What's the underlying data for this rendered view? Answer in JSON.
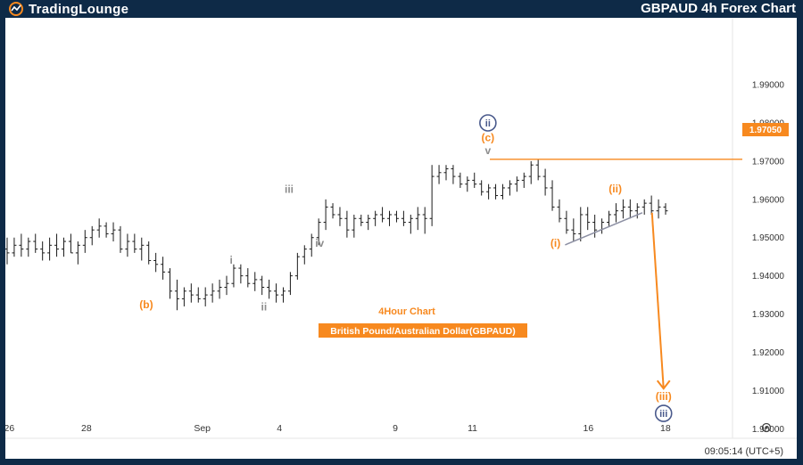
{
  "header": {
    "logo_text": "TradingLounge",
    "chart_heading": "GBPAUD 4h Forex Chart"
  },
  "colors": {
    "frame": "#0e2a47",
    "candle": "#1a1a1a",
    "accent_orange": "#f7891f",
    "wave_gray": "#8d8d8d",
    "circle_navy": "#4a5a8c",
    "trendline": "#8c8fa3"
  },
  "icons": {
    "settings": "gear-icon",
    "logo": "wave-logo-icon"
  },
  "chart_data": {
    "type": "ohlc",
    "symbol": "GBPAUD",
    "timeframe": "4h",
    "annotations": {
      "chart_label": "4Hour Chart",
      "instrument_label": "British Pound/Australian Dollar(GBPAUD)"
    },
    "ylim": [
      1.8975,
      2.0075
    ],
    "y_ticks": [
      "1.99000",
      "1.98000",
      "1.97000",
      "1.96000",
      "1.95000",
      "1.94000",
      "1.93000",
      "1.92000",
      "1.91000",
      "1.90000"
    ],
    "x_range": [
      25.9,
      46.4
    ],
    "x_ticks": [
      {
        "x": 26,
        "label": "26"
      },
      {
        "x": 28,
        "label": "28"
      },
      {
        "x": 31,
        "label": "Sep"
      },
      {
        "x": 33,
        "label": "4"
      },
      {
        "x": 36,
        "label": "9"
      },
      {
        "x": 38,
        "label": "11"
      },
      {
        "x": 41,
        "label": "16"
      },
      {
        "x": 43,
        "label": "18"
      }
    ],
    "price_tag": {
      "value": "1.97050"
    },
    "clock": "09:05:14 (UTC+5)",
    "ohlc": [
      [
        1.947,
        1.95,
        1.943,
        1.946
      ],
      [
        1.946,
        1.95,
        1.945,
        1.948
      ],
      [
        1.948,
        1.951,
        1.945,
        1.947
      ],
      [
        1.947,
        1.95,
        1.945,
        1.949
      ],
      [
        1.949,
        1.951,
        1.946,
        1.947
      ],
      [
        1.947,
        1.949,
        1.944,
        1.946
      ],
      [
        1.946,
        1.95,
        1.944,
        1.948
      ],
      [
        1.948,
        1.951,
        1.945,
        1.947
      ],
      [
        1.947,
        1.95,
        1.945,
        1.949
      ],
      [
        1.949,
        1.951,
        1.946,
        1.946
      ],
      [
        1.946,
        1.949,
        1.943,
        1.948
      ],
      [
        1.948,
        1.952,
        1.946,
        1.95
      ],
      [
        1.95,
        1.953,
        1.948,
        1.952
      ],
      [
        1.952,
        1.955,
        1.95,
        1.953
      ],
      [
        1.953,
        1.954,
        1.95,
        1.951
      ],
      [
        1.951,
        1.954,
        1.949,
        1.952
      ],
      [
        1.952,
        1.953,
        1.946,
        1.947
      ],
      [
        1.947,
        1.951,
        1.945,
        1.949
      ],
      [
        1.949,
        1.951,
        1.946,
        1.947
      ],
      [
        1.947,
        1.95,
        1.944,
        1.948
      ],
      [
        1.948,
        1.949,
        1.943,
        1.944
      ],
      [
        1.944,
        1.946,
        1.941,
        1.943
      ],
      [
        1.943,
        1.945,
        1.939,
        1.941
      ],
      [
        1.941,
        1.942,
        1.934,
        1.936
      ],
      [
        1.936,
        1.939,
        1.931,
        1.934
      ],
      [
        1.934,
        1.937,
        1.932,
        1.936
      ],
      [
        1.936,
        1.938,
        1.933,
        1.935
      ],
      [
        1.935,
        1.937,
        1.933,
        1.934
      ],
      [
        1.934,
        1.937,
        1.932,
        1.935
      ],
      [
        1.935,
        1.938,
        1.933,
        1.936
      ],
      [
        1.936,
        1.939,
        1.934,
        1.937
      ],
      [
        1.937,
        1.94,
        1.935,
        1.938
      ],
      [
        1.938,
        1.943,
        1.937,
        1.942
      ],
      [
        1.942,
        1.943,
        1.938,
        1.94
      ],
      [
        1.94,
        1.942,
        1.937,
        1.938
      ],
      [
        1.938,
        1.941,
        1.936,
        1.939
      ],
      [
        1.939,
        1.94,
        1.935,
        1.937
      ],
      [
        1.937,
        1.939,
        1.934,
        1.936
      ],
      [
        1.936,
        1.938,
        1.933,
        1.935
      ],
      [
        1.935,
        1.937,
        1.933,
        1.936
      ],
      [
        1.936,
        1.941,
        1.935,
        1.94
      ],
      [
        1.94,
        1.946,
        1.939,
        1.945
      ],
      [
        1.945,
        1.948,
        1.943,
        1.947
      ],
      [
        1.947,
        1.951,
        1.945,
        1.95
      ],
      [
        1.95,
        1.955,
        1.948,
        1.954
      ],
      [
        1.954,
        1.96,
        1.952,
        1.958
      ],
      [
        1.958,
        1.959,
        1.955,
        1.956
      ],
      [
        1.956,
        1.958,
        1.953,
        1.955
      ],
      [
        1.955,
        1.957,
        1.95,
        1.952
      ],
      [
        1.952,
        1.956,
        1.95,
        1.955
      ],
      [
        1.955,
        1.956,
        1.953,
        1.954
      ],
      [
        1.954,
        1.956,
        1.952,
        1.955
      ],
      [
        1.955,
        1.957,
        1.953,
        1.956
      ],
      [
        1.956,
        1.958,
        1.954,
        1.955
      ],
      [
        1.955,
        1.957,
        1.953,
        1.956
      ],
      [
        1.956,
        1.957,
        1.954,
        1.955
      ],
      [
        1.955,
        1.957,
        1.953,
        1.954
      ],
      [
        1.954,
        1.956,
        1.951,
        1.955
      ],
      [
        1.955,
        1.958,
        1.952,
        1.956
      ],
      [
        1.956,
        1.958,
        1.951,
        1.955
      ],
      [
        1.955,
        1.969,
        1.953,
        1.966
      ],
      [
        1.966,
        1.969,
        1.964,
        1.967
      ],
      [
        1.967,
        1.969,
        1.965,
        1.968
      ],
      [
        1.968,
        1.969,
        1.964,
        1.966
      ],
      [
        1.966,
        1.967,
        1.963,
        1.964
      ],
      [
        1.964,
        1.966,
        1.962,
        1.965
      ],
      [
        1.965,
        1.967,
        1.963,
        1.964
      ],
      [
        1.964,
        1.965,
        1.961,
        1.962
      ],
      [
        1.962,
        1.964,
        1.96,
        1.963
      ],
      [
        1.963,
        1.964,
        1.96,
        1.961
      ],
      [
        1.961,
        1.964,
        1.96,
        1.963
      ],
      [
        1.963,
        1.965,
        1.961,
        1.964
      ],
      [
        1.964,
        1.966,
        1.962,
        1.965
      ],
      [
        1.965,
        1.967,
        1.963,
        1.966
      ],
      [
        1.966,
        1.97,
        1.964,
        1.969
      ],
      [
        1.969,
        1.9705,
        1.965,
        1.966
      ],
      [
        1.966,
        1.968,
        1.961,
        1.963
      ],
      [
        1.963,
        1.965,
        1.957,
        1.958
      ],
      [
        1.958,
        1.96,
        1.954,
        1.955
      ],
      [
        1.955,
        1.957,
        1.951,
        1.952
      ],
      [
        1.952,
        1.955,
        1.949,
        1.951
      ],
      [
        1.951,
        1.958,
        1.949,
        1.956
      ],
      [
        1.956,
        1.958,
        1.952,
        1.954
      ],
      [
        1.954,
        1.956,
        1.95,
        1.952
      ],
      [
        1.952,
        1.955,
        1.951,
        1.954
      ],
      [
        1.954,
        1.957,
        1.953,
        1.956
      ],
      [
        1.956,
        1.959,
        1.954,
        1.957
      ],
      [
        1.957,
        1.96,
        1.955,
        1.958
      ],
      [
        1.958,
        1.96,
        1.955,
        1.957
      ],
      [
        1.957,
        1.959,
        1.955,
        1.958
      ],
      [
        1.958,
        1.96,
        1.956,
        1.959
      ],
      [
        1.959,
        1.961,
        1.956,
        1.957
      ],
      [
        1.957,
        1.96,
        1.955,
        1.958
      ],
      [
        1.958,
        1.959,
        1.956,
        1.957
      ]
    ],
    "trendline": {
      "x1": 40.4,
      "y1": 1.9481,
      "x2": 42.4,
      "y2": 1.9565
    },
    "projection": {
      "x1": 42.65,
      "y1": 1.9565,
      "x2": 42.95,
      "y2": 1.9105
    },
    "wave_labels": [
      {
        "text": "(b)",
        "x": 29.55,
        "y": 1.9325,
        "color": "orange"
      },
      {
        "text": "i",
        "x": 31.75,
        "y": 1.9441,
        "color": "gray"
      },
      {
        "text": "ii",
        "x": 32.6,
        "y": 1.9319,
        "color": "gray"
      },
      {
        "text": "iii",
        "x": 33.25,
        "y": 1.9626,
        "color": "gray"
      },
      {
        "text": "iv",
        "x": 34.04,
        "y": 1.9485,
        "color": "gray"
      },
      {
        "text": "(c)",
        "x": 38.4,
        "y": 1.9761,
        "color": "orange"
      },
      {
        "text": "v",
        "x": 38.4,
        "y": 1.9728,
        "color": "gray"
      },
      {
        "text": "(i)",
        "x": 40.15,
        "y": 1.9485,
        "color": "orange"
      },
      {
        "text": "(ii)",
        "x": 41.7,
        "y": 1.9627,
        "color": "orange"
      },
      {
        "text": "(iii)",
        "x": 42.95,
        "y": 1.9084,
        "color": "orange"
      }
    ],
    "circle_labels": [
      {
        "text": "ii",
        "x": 38.4,
        "y": 1.98
      },
      {
        "text": "iii",
        "x": 42.95,
        "y": 1.904
      }
    ]
  }
}
